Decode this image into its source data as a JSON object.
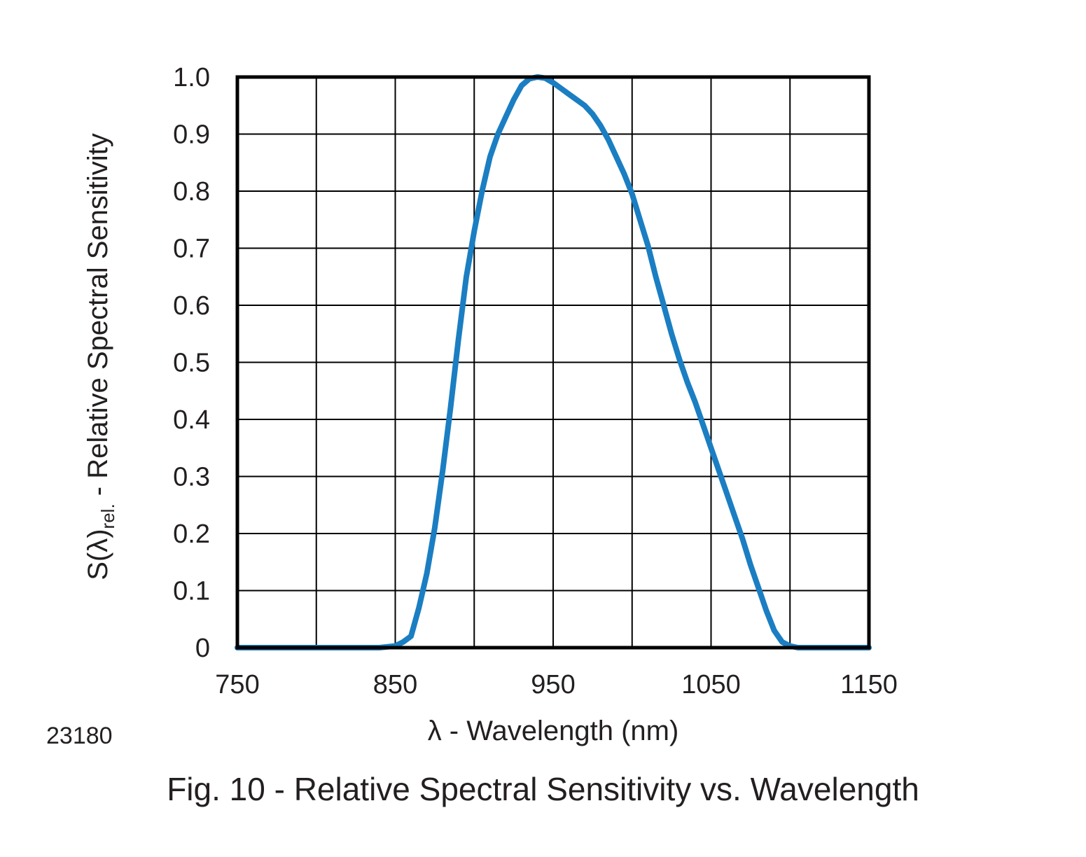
{
  "figure": {
    "caption": "Fig. 10 - Relative Spectral Sensitivity vs. Wavelength",
    "figure_number": "23180"
  },
  "chart_data": {
    "type": "line",
    "xlabel": "λ - Wavelength (nm)",
    "ylabel": {
      "main": "S(λ)",
      "subscript": "rel.",
      "suffix": " - Relative Spectral Sensitivity"
    },
    "xlim": [
      750,
      1150
    ],
    "ylim": [
      0,
      1.0
    ],
    "x_ticks": [
      "750",
      "850",
      "950",
      "1050",
      "1150"
    ],
    "y_ticks": [
      "0",
      "0.1",
      "0.2",
      "0.3",
      "0.4",
      "0.5",
      "0.6",
      "0.7",
      "0.8",
      "0.9",
      "1.0"
    ],
    "grid": true,
    "x_grid_step": 50,
    "y_grid_step": 0.1,
    "colors": {
      "line": "#1b7ec2",
      "grid": "#000000"
    },
    "series": [
      {
        "x": [
          750,
          800,
          840,
          850,
          855,
          860,
          865,
          870,
          875,
          880,
          885,
          890,
          895,
          900,
          905,
          910,
          915,
          920,
          925,
          930,
          935,
          940,
          945,
          950,
          955,
          960,
          965,
          970,
          975,
          980,
          985,
          990,
          995,
          1000,
          1005,
          1010,
          1015,
          1020,
          1025,
          1030,
          1035,
          1040,
          1045,
          1050,
          1055,
          1060,
          1065,
          1070,
          1075,
          1080,
          1085,
          1090,
          1095,
          1100,
          1105,
          1110,
          1115,
          1120,
          1125,
          1130,
          1135,
          1140,
          1150
        ],
        "y": [
          0,
          0,
          0,
          0.003,
          0.01,
          0.02,
          0.07,
          0.13,
          0.21,
          0.31,
          0.42,
          0.54,
          0.65,
          0.73,
          0.8,
          0.86,
          0.9,
          0.93,
          0.96,
          0.985,
          0.997,
          1.0,
          0.998,
          0.99,
          0.98,
          0.97,
          0.96,
          0.95,
          0.935,
          0.915,
          0.89,
          0.86,
          0.83,
          0.795,
          0.75,
          0.705,
          0.65,
          0.6,
          0.55,
          0.505,
          0.465,
          0.43,
          0.39,
          0.35,
          0.31,
          0.27,
          0.23,
          0.19,
          0.145,
          0.105,
          0.065,
          0.03,
          0.01,
          0.003,
          0,
          0,
          0,
          0,
          0,
          0,
          0,
          0,
          0
        ]
      }
    ]
  }
}
